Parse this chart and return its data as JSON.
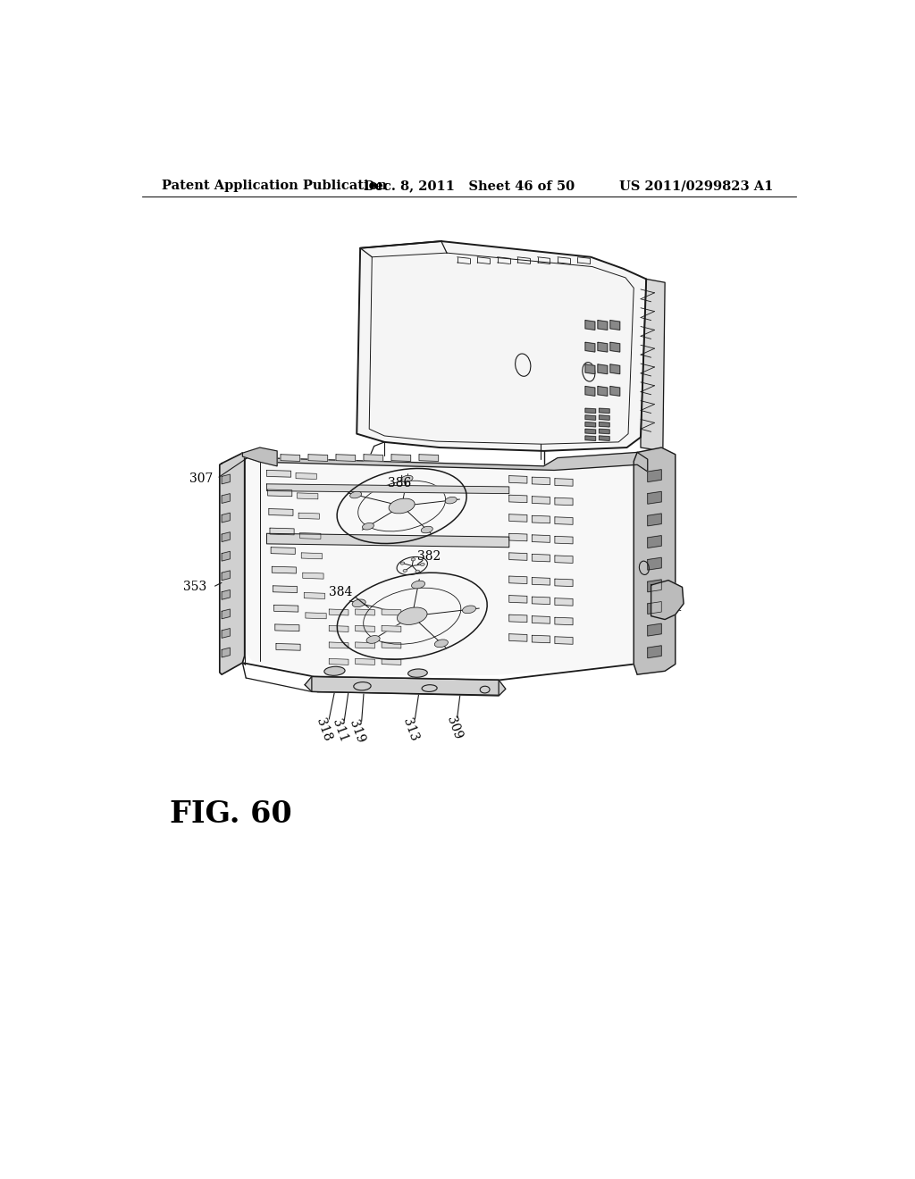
{
  "header_left": "Patent Application Publication",
  "header_center": "Dec. 8, 2011   Sheet 46 of 50",
  "header_right": "US 2011/0299823 A1",
  "fig_label": "FIG. 60",
  "background_color": "#ffffff",
  "line_color": "#1a1a1a",
  "header_fontsize": 10.5,
  "fig_fontsize": 24,
  "drawing_scale": 1.0,
  "label_fontsize": 10
}
